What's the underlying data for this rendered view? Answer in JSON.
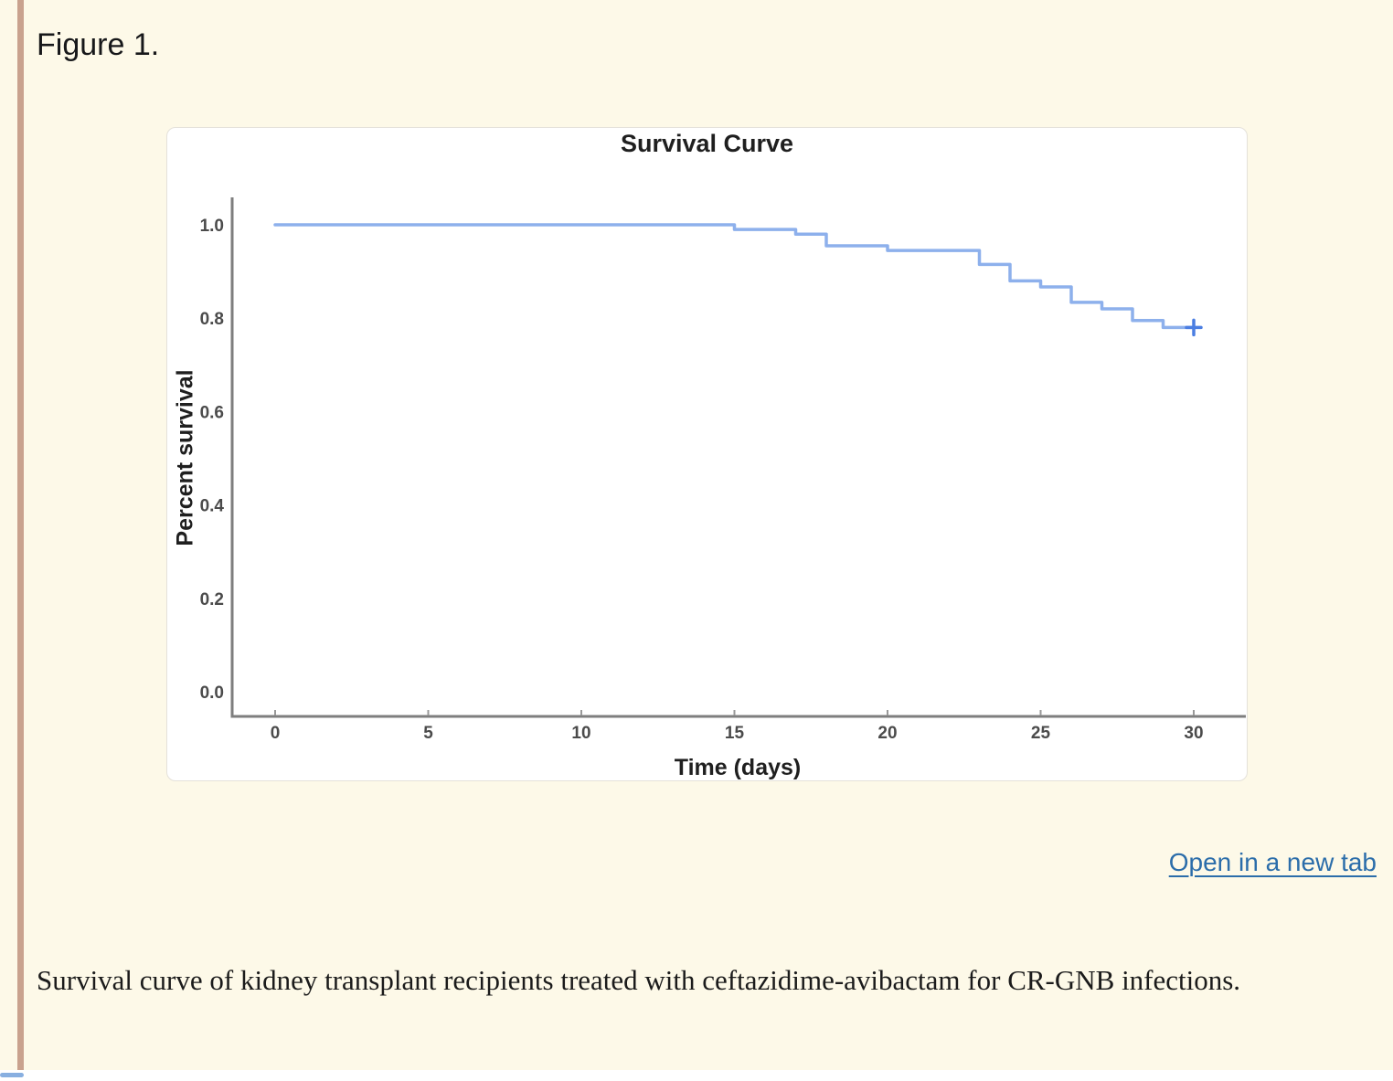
{
  "figure": {
    "label": "Figure 1."
  },
  "link": {
    "open_in_new_tab_label": "Open in a new tab"
  },
  "caption": {
    "text": "Survival curve of kidney transplant recipients treated with ceftazidime-avibactam for CR-GNB infections."
  },
  "colors": {
    "page_background": "#fdf9e8",
    "accent_bar": "#c9a28e",
    "card_background": "#ffffff",
    "link_blue": "#2b6daa",
    "axis_gray": "#7e7e7e",
    "tick_text": "#4b4b4b",
    "curve_blue": "#8db0ec",
    "censor_blue": "#4b7ee2"
  },
  "chart_data": {
    "type": "line",
    "subtype": "kaplan_meier_step",
    "title": "Survival Curve",
    "xlabel": "Time (days)",
    "ylabel": "Percent survival",
    "xlim": [
      0,
      31.5
    ],
    "ylim": [
      0.0,
      1.05
    ],
    "x_ticks": [
      0,
      5,
      10,
      15,
      20,
      25,
      30
    ],
    "y_ticks": [
      "1.0",
      "0.8",
      "0.6",
      "0.4",
      "0.2",
      "0.0"
    ],
    "grid": false,
    "legend": "none",
    "series": [
      {
        "name": "Percent survival",
        "step_times": [
          0,
          15,
          17,
          18,
          20,
          23,
          24,
          25,
          26,
          27,
          28,
          29,
          30
        ],
        "step_survival": [
          1.0,
          0.99,
          0.98,
          0.955,
          0.945,
          0.915,
          0.88,
          0.867,
          0.834,
          0.82,
          0.795,
          0.78,
          0.78
        ],
        "censor_marks": [
          {
            "time": 30,
            "survival": 0.78
          }
        ]
      }
    ]
  }
}
